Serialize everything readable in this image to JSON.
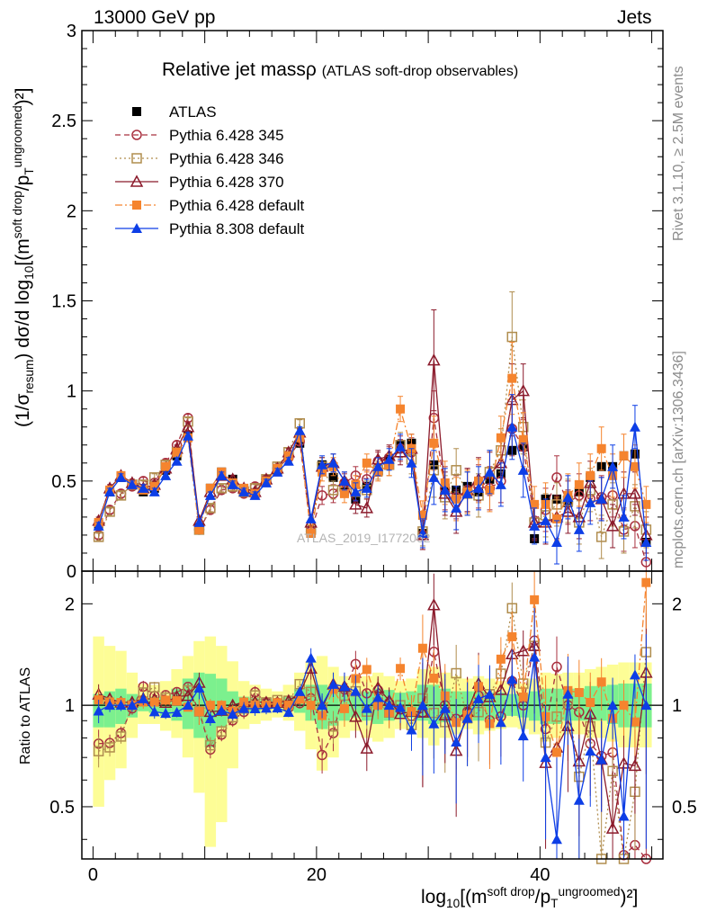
{
  "header": {
    "left": "13000 GeV pp",
    "right": "Jets"
  },
  "title": {
    "main": "Relative jet massρ",
    "sub": "(ATLAS soft-drop observables)"
  },
  "side_labels": {
    "rivet": "Rivet 3.1.10, ≥ 2.5M events",
    "mcplots": "mcplots.cern.ch [arXiv:1306.3436]"
  },
  "watermark": "ATLAS_2019_I1772062",
  "axes": {
    "y_main": {
      "prefix": "(1/σ",
      "prefix_sub": "resum",
      "mid": ") dσ/d log",
      "mid_sub": "10",
      "mid2": "[(m",
      "sup1": "soft drop",
      "mid3": "/p",
      "sub2": "T",
      "sup2": "ungroomed",
      "end": ")²]"
    },
    "y_ratio": "Ratio to ATLAS",
    "x": {
      "a": "log",
      "a_sub": "10",
      "b": "[(m",
      "sup1": "soft drop",
      "c": "/p",
      "sub2": "T",
      "sup2": "ungroomed",
      "d": ")²]"
    },
    "main_ticks": [
      "0",
      "0.5",
      "1",
      "1.5",
      "2",
      "2.5",
      "3"
    ],
    "ratio_ticks": [
      "0.5",
      "1",
      "2"
    ],
    "x_ticks": [
      "0",
      "20",
      "40"
    ]
  },
  "chart_data": {
    "type": "scatter",
    "x": [
      0.5,
      1.5,
      2.5,
      3.5,
      4.5,
      5.5,
      6.5,
      7.5,
      8.5,
      9.5,
      10.5,
      11.5,
      12.5,
      13.5,
      14.5,
      15.5,
      16.5,
      17.5,
      18.5,
      19.5,
      20.5,
      21.5,
      22.5,
      23.5,
      24.5,
      25.5,
      26.5,
      27.5,
      28.5,
      29.5,
      30.5,
      31.5,
      32.5,
      33.5,
      34.5,
      35.5,
      36.5,
      37.5,
      38.5,
      39.5,
      40.5,
      41.5,
      42.5,
      43.5,
      44.5,
      45.5,
      46.5,
      47.5,
      48.5,
      49.5
    ],
    "xlim": [
      -1,
      51
    ],
    "ylim_main": [
      0,
      3
    ],
    "ylim_ratio": [
      0.35,
      2.5
    ],
    "ratio_scale": "log",
    "legend_position": "top-left",
    "series": [
      {
        "name": "ATLAS",
        "color": "#000000",
        "marker": "square-filled",
        "line": "none",
        "values": [
          0.26,
          0.44,
          0.52,
          0.48,
          0.44,
          0.46,
          0.56,
          0.64,
          0.75,
          0.24,
          0.46,
          0.55,
          0.51,
          0.45,
          0.43,
          0.5,
          0.56,
          0.64,
          0.71,
          0.21,
          0.59,
          0.52,
          0.44,
          0.4,
          0.47,
          0.55,
          0.62,
          0.7,
          0.71,
          0.21,
          0.59,
          0.46,
          0.45,
          0.47,
          0.44,
          0.51,
          0.54,
          0.67,
          0.69,
          0.18,
          0.4,
          0.4,
          0.38,
          0.44,
          0.52,
          0.58,
          0.58,
          0.64,
          0.65,
          0.16
        ],
        "errors": [
          0.02,
          0.02,
          0.02,
          0.02,
          0.02,
          0.02,
          0.02,
          0.02,
          0.02,
          0.02,
          0.02,
          0.02,
          0.02,
          0.02,
          0.02,
          0.02,
          0.02,
          0.02,
          0.02,
          0.02,
          0.02,
          0.02,
          0.02,
          0.02,
          0.02,
          0.02,
          0.02,
          0.02,
          0.02,
          0.02,
          0.02,
          0.02,
          0.02,
          0.02,
          0.02,
          0.02,
          0.02,
          0.02,
          0.02,
          0.02,
          0.02,
          0.02,
          0.02,
          0.02,
          0.02,
          0.02,
          0.02,
          0.02,
          0.02,
          0.02
        ]
      },
      {
        "name": "Pythia 6.428 345",
        "color": "#a9303f",
        "marker": "circle-open",
        "line": "dashed",
        "values": [
          0.2,
          0.34,
          0.43,
          0.47,
          0.5,
          0.49,
          0.6,
          0.7,
          0.85,
          0.23,
          0.34,
          0.45,
          0.46,
          0.43,
          0.47,
          0.51,
          0.57,
          0.63,
          0.72,
          0.22,
          0.42,
          0.43,
          0.49,
          0.53,
          0.51,
          0.61,
          0.63,
          0.68,
          0.66,
          0.2,
          0.85,
          0.46,
          0.41,
          0.45,
          0.47,
          0.46,
          0.5,
          0.79,
          0.69,
          0.28,
          0.34,
          0.52,
          0.38,
          0.42,
          0.4,
          0.41,
          0.42,
          0.23,
          0.25,
          0.05
        ],
        "errors": [
          0.02,
          0.02,
          0.02,
          0.02,
          0.02,
          0.02,
          0.02,
          0.02,
          0.02,
          0.02,
          0.02,
          0.02,
          0.02,
          0.02,
          0.02,
          0.02,
          0.02,
          0.02,
          0.02,
          0.02,
          0.05,
          0.05,
          0.05,
          0.05,
          0.05,
          0.05,
          0.06,
          0.07,
          0.08,
          0.08,
          0.15,
          0.12,
          0.12,
          0.12,
          0.12,
          0.12,
          0.12,
          0.15,
          0.15,
          0.1,
          0.12,
          0.12,
          0.12,
          0.12,
          0.12,
          0.12,
          0.12,
          0.12,
          0.12,
          0.1
        ]
      },
      {
        "name": "Pythia 6.428 346",
        "color": "#b08d4e",
        "marker": "square-open",
        "line": "dotted",
        "values": [
          0.19,
          0.33,
          0.42,
          0.48,
          0.48,
          0.52,
          0.59,
          0.66,
          0.83,
          0.23,
          0.35,
          0.46,
          0.47,
          0.44,
          0.46,
          0.51,
          0.58,
          0.66,
          0.82,
          0.23,
          0.58,
          0.45,
          0.47,
          0.44,
          0.45,
          0.56,
          0.59,
          0.7,
          0.62,
          0.22,
          0.56,
          0.41,
          0.56,
          0.43,
          0.42,
          0.55,
          0.67,
          1.3,
          0.8,
          0.27,
          0.31,
          0.37,
          0.39,
          0.27,
          0.45,
          0.19,
          0.37,
          0.22,
          0.36,
          0.23
        ],
        "errors": [
          0.02,
          0.02,
          0.02,
          0.02,
          0.02,
          0.02,
          0.02,
          0.02,
          0.02,
          0.02,
          0.02,
          0.02,
          0.02,
          0.02,
          0.02,
          0.02,
          0.02,
          0.02,
          0.02,
          0.02,
          0.05,
          0.05,
          0.05,
          0.05,
          0.05,
          0.05,
          0.06,
          0.07,
          0.08,
          0.08,
          0.15,
          0.12,
          0.12,
          0.12,
          0.12,
          0.12,
          0.12,
          0.25,
          0.15,
          0.1,
          0.12,
          0.12,
          0.12,
          0.12,
          0.12,
          0.12,
          0.12,
          0.12,
          0.12,
          0.1
        ]
      },
      {
        "name": "Pythia 6.428 370",
        "color": "#8b1a2b",
        "marker": "triangle-open",
        "line": "solid",
        "values": [
          0.28,
          0.46,
          0.53,
          0.49,
          0.46,
          0.48,
          0.57,
          0.68,
          0.8,
          0.28,
          0.44,
          0.53,
          0.51,
          0.46,
          0.44,
          0.51,
          0.57,
          0.66,
          0.77,
          0.27,
          0.58,
          0.6,
          0.5,
          0.37,
          0.35,
          0.62,
          0.64,
          0.66,
          0.68,
          0.2,
          1.17,
          0.43,
          0.33,
          0.45,
          0.51,
          0.54,
          0.6,
          0.95,
          1.0,
          0.27,
          0.27,
          0.3,
          0.33,
          0.3,
          0.49,
          0.4,
          0.25,
          0.43,
          0.43,
          0.2
        ],
        "errors": [
          0.02,
          0.02,
          0.02,
          0.02,
          0.02,
          0.02,
          0.02,
          0.02,
          0.02,
          0.02,
          0.02,
          0.02,
          0.02,
          0.02,
          0.02,
          0.02,
          0.02,
          0.02,
          0.02,
          0.02,
          0.05,
          0.05,
          0.05,
          0.05,
          0.05,
          0.05,
          0.06,
          0.07,
          0.08,
          0.08,
          0.28,
          0.12,
          0.12,
          0.12,
          0.12,
          0.12,
          0.12,
          0.2,
          0.15,
          0.1,
          0.12,
          0.12,
          0.12,
          0.12,
          0.12,
          0.12,
          0.12,
          0.12,
          0.12,
          0.1
        ]
      },
      {
        "name": "Pythia 6.428 default",
        "color": "#f5842e",
        "marker": "square-filled",
        "line": "dashdot",
        "values": [
          0.27,
          0.45,
          0.53,
          0.48,
          0.45,
          0.47,
          0.58,
          0.66,
          0.74,
          0.23,
          0.46,
          0.55,
          0.49,
          0.46,
          0.43,
          0.5,
          0.57,
          0.64,
          0.74,
          0.21,
          0.55,
          0.58,
          0.43,
          0.48,
          0.6,
          0.55,
          0.59,
          0.9,
          0.68,
          0.31,
          0.71,
          0.49,
          0.4,
          0.44,
          0.5,
          0.45,
          0.74,
          1.07,
          0.73,
          0.37,
          0.37,
          0.29,
          0.42,
          0.48,
          0.53,
          0.68,
          0.53,
          0.64,
          0.58,
          0.37
        ],
        "errors": [
          0.02,
          0.02,
          0.02,
          0.02,
          0.02,
          0.02,
          0.02,
          0.02,
          0.02,
          0.02,
          0.02,
          0.02,
          0.02,
          0.02,
          0.02,
          0.02,
          0.02,
          0.02,
          0.02,
          0.02,
          0.05,
          0.05,
          0.05,
          0.05,
          0.05,
          0.05,
          0.06,
          0.07,
          0.08,
          0.08,
          0.15,
          0.12,
          0.12,
          0.12,
          0.12,
          0.12,
          0.12,
          0.2,
          0.15,
          0.1,
          0.12,
          0.12,
          0.12,
          0.12,
          0.12,
          0.12,
          0.12,
          0.12,
          0.12,
          0.1
        ]
      },
      {
        "name": "Pythia 8.308 default",
        "color": "#0d3ee6",
        "marker": "triangle-filled",
        "line": "solid",
        "values": [
          0.25,
          0.44,
          0.52,
          0.48,
          0.46,
          0.44,
          0.53,
          0.61,
          0.75,
          0.27,
          0.42,
          0.53,
          0.48,
          0.44,
          0.42,
          0.49,
          0.55,
          0.61,
          0.78,
          0.29,
          0.59,
          0.6,
          0.5,
          0.44,
          0.46,
          0.58,
          0.62,
          0.69,
          0.6,
          0.21,
          0.52,
          0.45,
          0.35,
          0.43,
          0.46,
          0.55,
          0.48,
          0.8,
          0.56,
          0.25,
          0.28,
          0.16,
          0.41,
          0.23,
          0.38,
          0.4,
          0.58,
          0.3,
          0.8,
          0.16
        ],
        "errors": [
          0.02,
          0.02,
          0.02,
          0.02,
          0.02,
          0.02,
          0.02,
          0.02,
          0.02,
          0.02,
          0.02,
          0.02,
          0.02,
          0.02,
          0.02,
          0.02,
          0.02,
          0.02,
          0.02,
          0.02,
          0.05,
          0.05,
          0.05,
          0.05,
          0.05,
          0.05,
          0.06,
          0.07,
          0.08,
          0.08,
          0.15,
          0.12,
          0.12,
          0.12,
          0.12,
          0.12,
          0.12,
          0.18,
          0.15,
          0.1,
          0.12,
          0.12,
          0.12,
          0.12,
          0.12,
          0.12,
          0.12,
          0.12,
          0.12,
          0.1
        ]
      }
    ],
    "uncertainty_bands": {
      "inner_color": "#7cf08e",
      "outer_color": "#fdfd96",
      "inner": [
        [
          0.86,
          1.08
        ],
        [
          0.86,
          1.1
        ],
        [
          0.88,
          1.12
        ],
        [
          0.92,
          1.08
        ],
        [
          0.96,
          1.05
        ],
        [
          0.95,
          1.06
        ],
        [
          0.93,
          1.06
        ],
        [
          0.9,
          1.12
        ],
        [
          0.85,
          1.2
        ],
        [
          0.8,
          1.25
        ],
        [
          0.75,
          1.24
        ],
        [
          0.86,
          1.2
        ],
        [
          0.92,
          1.1
        ],
        [
          0.95,
          1.06
        ],
        [
          0.95,
          1.05
        ],
        [
          0.97,
          1.05
        ],
        [
          0.98,
          1.04
        ],
        [
          0.96,
          1.06
        ],
        [
          0.95,
          1.12
        ],
        [
          0.9,
          1.15
        ],
        [
          0.85,
          1.15
        ],
        [
          0.87,
          1.13
        ],
        [
          0.9,
          1.1
        ],
        [
          0.92,
          1.09
        ],
        [
          0.9,
          1.1
        ],
        [
          0.88,
          1.12
        ],
        [
          0.9,
          1.11
        ],
        [
          0.92,
          1.09
        ],
        [
          0.92,
          1.1
        ],
        [
          0.9,
          1.15
        ],
        [
          0.88,
          1.15
        ],
        [
          0.89,
          1.12
        ],
        [
          0.9,
          1.1
        ],
        [
          0.92,
          1.1
        ],
        [
          0.9,
          1.1
        ],
        [
          0.91,
          1.09
        ],
        [
          0.92,
          1.09
        ],
        [
          0.93,
          1.08
        ],
        [
          0.92,
          1.08
        ],
        [
          0.9,
          1.1
        ],
        [
          0.88,
          1.12
        ],
        [
          0.88,
          1.12
        ],
        [
          0.9,
          1.12
        ],
        [
          0.9,
          1.12
        ],
        [
          0.9,
          1.14
        ],
        [
          0.9,
          1.14
        ],
        [
          0.88,
          1.15
        ],
        [
          0.86,
          1.16
        ],
        [
          0.86,
          1.16
        ],
        [
          0.86,
          1.16
        ]
      ],
      "outer": [
        [
          0.5,
          1.6
        ],
        [
          0.6,
          1.5
        ],
        [
          0.65,
          1.45
        ],
        [
          0.8,
          1.25
        ],
        [
          0.88,
          1.16
        ],
        [
          0.88,
          1.15
        ],
        [
          0.84,
          1.18
        ],
        [
          0.8,
          1.28
        ],
        [
          0.7,
          1.4
        ],
        [
          0.55,
          1.55
        ],
        [
          0.38,
          1.6
        ],
        [
          0.45,
          1.5
        ],
        [
          0.65,
          1.35
        ],
        [
          0.85,
          1.18
        ],
        [
          0.88,
          1.15
        ],
        [
          0.9,
          1.12
        ],
        [
          0.92,
          1.1
        ],
        [
          0.9,
          1.15
        ],
        [
          0.84,
          1.25
        ],
        [
          0.74,
          1.35
        ],
        [
          0.64,
          1.4
        ],
        [
          0.7,
          1.3
        ],
        [
          0.8,
          1.22
        ],
        [
          0.84,
          1.2
        ],
        [
          0.8,
          1.22
        ],
        [
          0.78,
          1.25
        ],
        [
          0.8,
          1.22
        ],
        [
          0.85,
          1.18
        ],
        [
          0.85,
          1.2
        ],
        [
          0.8,
          1.28
        ],
        [
          0.76,
          1.3
        ],
        [
          0.8,
          1.25
        ],
        [
          0.82,
          1.22
        ],
        [
          0.85,
          1.2
        ],
        [
          0.82,
          1.22
        ],
        [
          0.84,
          1.2
        ],
        [
          0.85,
          1.18
        ],
        [
          0.86,
          1.16
        ],
        [
          0.85,
          1.16
        ],
        [
          0.82,
          1.2
        ],
        [
          0.78,
          1.25
        ],
        [
          0.8,
          1.24
        ],
        [
          0.82,
          1.25
        ],
        [
          0.82,
          1.25
        ],
        [
          0.8,
          1.28
        ],
        [
          0.8,
          1.3
        ],
        [
          0.78,
          1.32
        ],
        [
          0.75,
          1.34
        ],
        [
          0.75,
          1.34
        ],
        [
          0.75,
          1.34
        ]
      ]
    }
  }
}
